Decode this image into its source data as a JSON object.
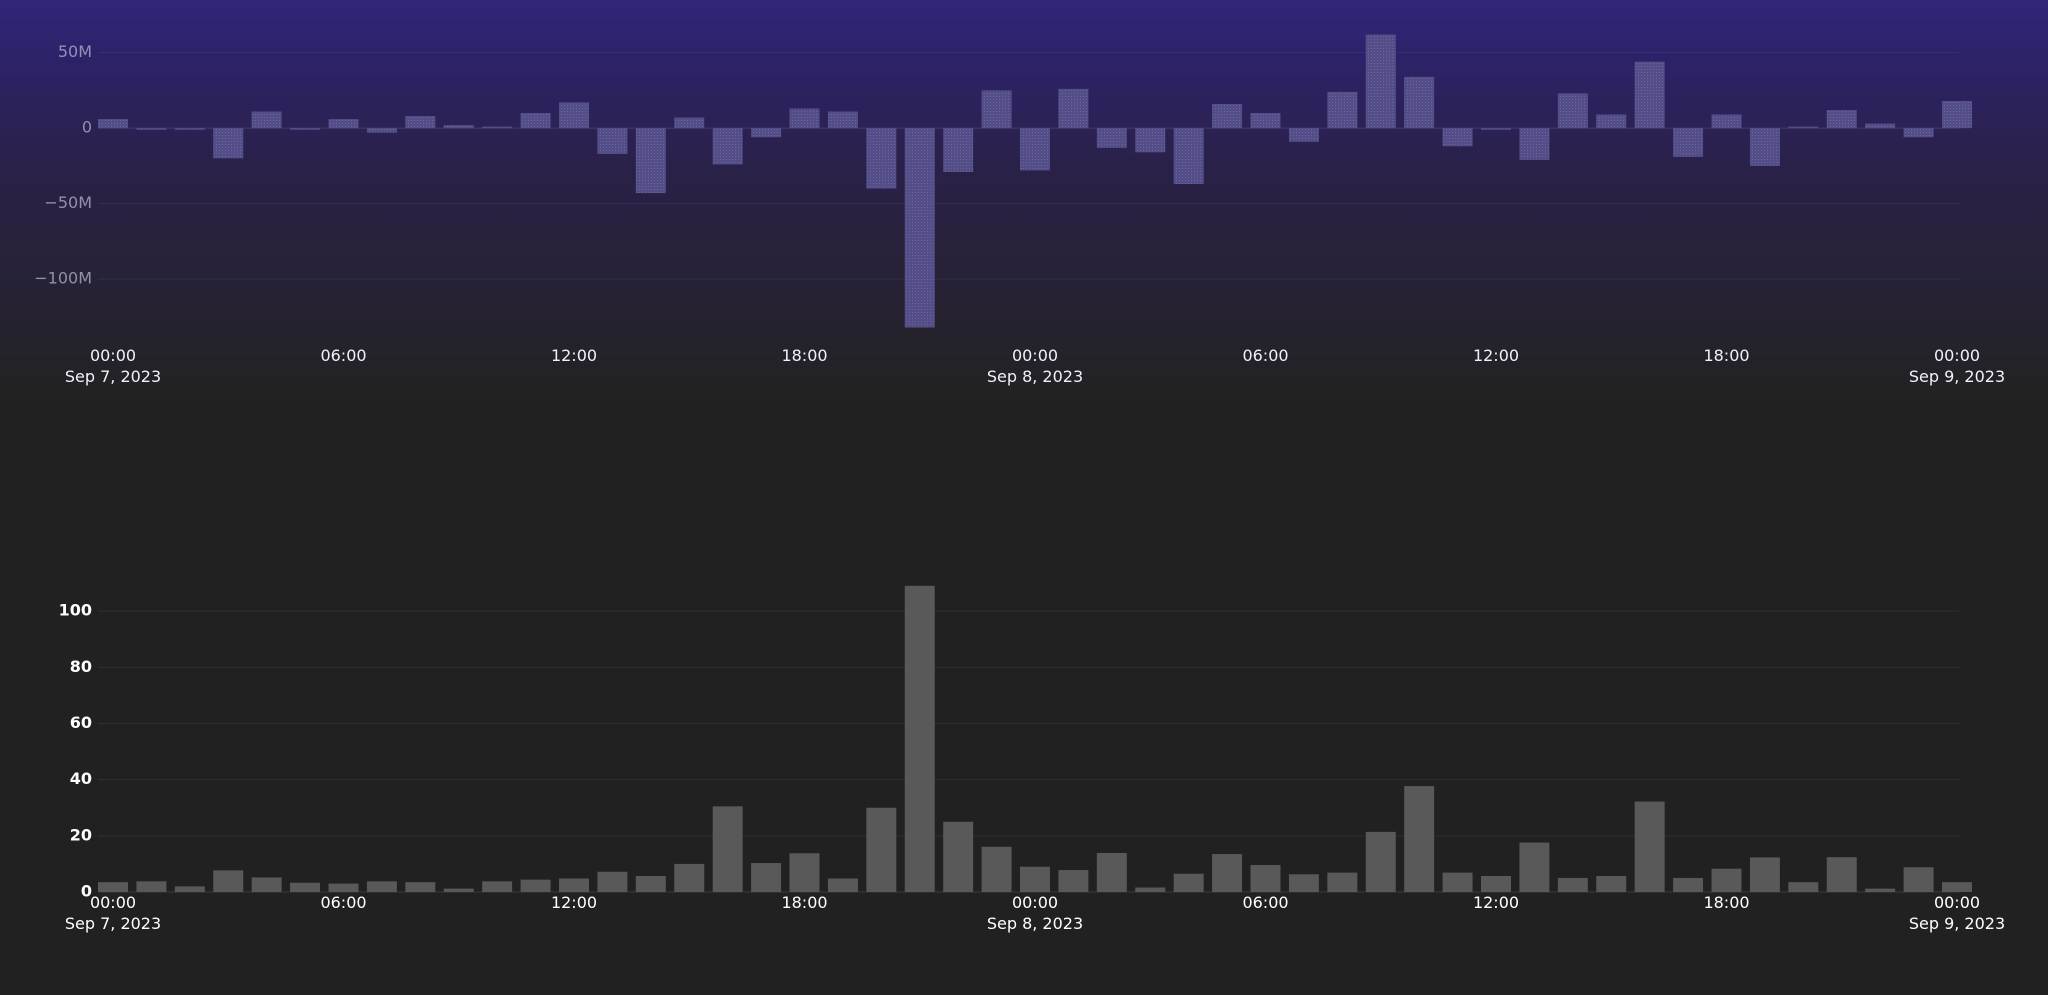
{
  "chart_data": [
    {
      "type": "bar",
      "title": "",
      "xlabel": "",
      "ylabel": "",
      "x_start": "2023-09-07 00:00",
      "x_interval": "1h",
      "ylim": [
        -135,
        65
      ],
      "y_unit": "M",
      "yticks": [
        {
          "value": 50,
          "label": "50M"
        },
        {
          "value": 0,
          "label": "0"
        },
        {
          "value": -50,
          "label": "−50M"
        },
        {
          "value": -100,
          "label": "−100M"
        }
      ],
      "xticks": [
        {
          "value": "2023-09-07 00:00",
          "label1": "00:00",
          "label2": "Sep 7, 2023"
        },
        {
          "value": "2023-09-07 06:00",
          "label1": "06:00",
          "label2": ""
        },
        {
          "value": "2023-09-07 12:00",
          "label1": "12:00",
          "label2": ""
        },
        {
          "value": "2023-09-07 18:00",
          "label1": "18:00",
          "label2": ""
        },
        {
          "value": "2023-09-08 00:00",
          "label1": "00:00",
          "label2": "Sep 8, 2023"
        },
        {
          "value": "2023-09-08 06:00",
          "label1": "06:00",
          "label2": ""
        },
        {
          "value": "2023-09-08 12:00",
          "label1": "12:00",
          "label2": ""
        },
        {
          "value": "2023-09-08 18:00",
          "label1": "18:00",
          "label2": ""
        },
        {
          "value": "2023-09-09 00:00",
          "label1": "00:00",
          "label2": "Sep 9, 2023"
        }
      ],
      "values": [
        6,
        -1,
        -1,
        -20,
        11,
        -1,
        6,
        -3,
        8,
        2,
        1,
        10,
        17,
        -17,
        -43,
        7,
        -24,
        -6,
        13,
        11,
        -40,
        -132,
        -29,
        25,
        -28,
        26,
        -13,
        -16,
        -37,
        16,
        10,
        -9,
        24,
        62,
        34,
        -12,
        -1,
        -21,
        23,
        9,
        44,
        -19,
        9,
        -25,
        1,
        12,
        3,
        -6,
        18
      ],
      "colors": {
        "bar": "#55508a"
      }
    },
    {
      "type": "bar",
      "title": "",
      "xlabel": "",
      "ylabel": "",
      "x_start": "2023-09-07 00:00",
      "x_interval": "1h",
      "ylim": [
        0,
        110
      ],
      "yticks": [
        {
          "value": 0,
          "label": "0"
        },
        {
          "value": 20,
          "label": "20"
        },
        {
          "value": 40,
          "label": "40"
        },
        {
          "value": 60,
          "label": "60"
        },
        {
          "value": 80,
          "label": "80"
        },
        {
          "value": 100,
          "label": "100"
        }
      ],
      "xticks": [
        {
          "value": "2023-09-07 00:00",
          "label1": "00:00",
          "label2": "Sep 7, 2023"
        },
        {
          "value": "2023-09-07 06:00",
          "label1": "06:00",
          "label2": ""
        },
        {
          "value": "2023-09-07 12:00",
          "label1": "12:00",
          "label2": ""
        },
        {
          "value": "2023-09-07 18:00",
          "label1": "18:00",
          "label2": ""
        },
        {
          "value": "2023-09-08 00:00",
          "label1": "00:00",
          "label2": "Sep 8, 2023"
        },
        {
          "value": "2023-09-08 06:00",
          "label1": "06:00",
          "label2": ""
        },
        {
          "value": "2023-09-08 12:00",
          "label1": "12:00",
          "label2": ""
        },
        {
          "value": "2023-09-08 18:00",
          "label1": "18:00",
          "label2": ""
        },
        {
          "value": "2023-09-09 00:00",
          "label1": "00:00",
          "label2": "Sep 9, 2023"
        }
      ],
      "values": [
        3.5,
        3.8,
        2,
        7.7,
        5.2,
        3.3,
        3,
        3.8,
        3.5,
        1.2,
        3.8,
        4.4,
        4.8,
        7.2,
        5.7,
        10,
        30.5,
        10.3,
        13.8,
        4.8,
        30,
        109,
        25,
        16.1,
        9,
        7.8,
        13.9,
        1.6,
        6.5,
        13.5,
        9.6,
        6.3,
        6.9,
        21.4,
        37.7,
        6.9,
        5.7,
        17.6,
        5,
        5.7,
        32.2,
        5,
        8.3,
        12.3,
        3.5,
        12.4,
        1.2,
        8.8,
        3.5
      ],
      "colors": {
        "bar": "#595959"
      }
    }
  ]
}
